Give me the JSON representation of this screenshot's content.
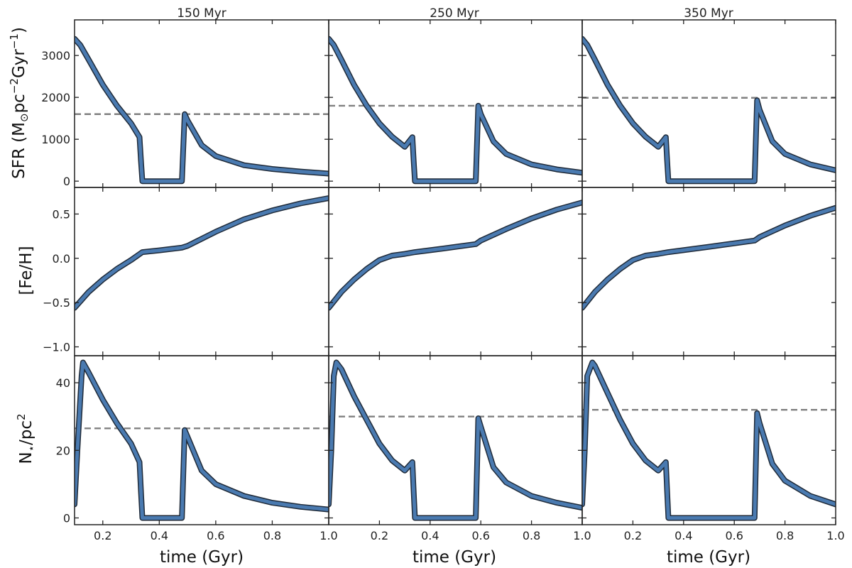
{
  "figure": {
    "column_titles": [
      "150 Myr",
      "250 Myr",
      "350 Myr"
    ],
    "row_ylabels": [
      "SFR (M$_\\odot$pc$^{-2}$Gyr$^{-1}$)",
      "[Fe/H]",
      "N$_\\star$/pc$^2$"
    ],
    "ylabel_sfr": {
      "base": "SFR (M",
      "sub": "⊙",
      "mid1": "pc",
      "sup1": "−2",
      "mid2": "Gyr",
      "sup2": "−1",
      "end": ")"
    },
    "ylabel_feh": "[Fe/H]",
    "ylabel_nstar": {
      "base": "N",
      "sub": "⋆",
      "mid": "/pc",
      "sup": "2"
    },
    "xlabel": "time (Gyr)",
    "colors": {
      "line": "#4a7ab0",
      "outline": "#1f2a38",
      "ref": "#808080"
    }
  },
  "chart_data": [
    {
      "type": "line",
      "row": 0,
      "col": 0,
      "xlim": [
        0.1,
        1.0
      ],
      "ylim": [
        -150,
        3850
      ],
      "yticks": [
        0,
        1000,
        2000,
        3000
      ],
      "yticklabels": [
        "0",
        "1000",
        "2000",
        "3000"
      ],
      "xticks": [
        0.2,
        0.4,
        0.6,
        0.8,
        1.0
      ],
      "reference_y": 1600,
      "series": [
        {
          "x": [
            0.1,
            0.12,
            0.15,
            0.2,
            0.25,
            0.3,
            0.33,
            0.335,
            0.34,
            0.48,
            0.49,
            0.5,
            0.55,
            0.6,
            0.7,
            0.8,
            0.9,
            1.0
          ],
          "y": [
            3400,
            3250,
            2900,
            2300,
            1800,
            1380,
            1050,
            500,
            0,
            0,
            1600,
            1450,
            860,
            600,
            380,
            290,
            230,
            180
          ]
        }
      ]
    },
    {
      "type": "line",
      "row": 0,
      "col": 1,
      "xlim": [
        0.0,
        1.0
      ],
      "ylim": [
        -150,
        3850
      ],
      "yticks": [
        0,
        1000,
        2000,
        3000
      ],
      "xticks": [
        0.2,
        0.4,
        0.6,
        0.8,
        1.0
      ],
      "reference_y": 1800,
      "series": [
        {
          "x": [
            0.0,
            0.02,
            0.05,
            0.1,
            0.15,
            0.2,
            0.25,
            0.3,
            0.33,
            0.335,
            0.34,
            0.58,
            0.59,
            0.6,
            0.65,
            0.7,
            0.8,
            0.9,
            1.0
          ],
          "y": [
            3400,
            3250,
            2900,
            2300,
            1800,
            1380,
            1060,
            820,
            1050,
            500,
            0,
            0,
            1800,
            1600,
            950,
            650,
            400,
            280,
            200
          ]
        }
      ]
    },
    {
      "type": "line",
      "row": 0,
      "col": 2,
      "xlim": [
        0.0,
        1.0
      ],
      "ylim": [
        -150,
        3850
      ],
      "yticks": [
        0,
        1000,
        2000,
        3000
      ],
      "xticks": [
        0.2,
        0.4,
        0.6,
        0.8,
        1.0
      ],
      "reference_y": 1990,
      "series": [
        {
          "x": [
            0.0,
            0.02,
            0.05,
            0.1,
            0.15,
            0.2,
            0.25,
            0.3,
            0.33,
            0.335,
            0.34,
            0.68,
            0.69,
            0.7,
            0.75,
            0.8,
            0.9,
            1.0
          ],
          "y": [
            3400,
            3250,
            2900,
            2300,
            1800,
            1380,
            1060,
            820,
            1050,
            500,
            0,
            0,
            1930,
            1700,
            950,
            650,
            400,
            260
          ]
        }
      ]
    },
    {
      "type": "line",
      "row": 1,
      "col": 0,
      "xlim": [
        0.1,
        1.0
      ],
      "ylim": [
        -1.1,
        0.8
      ],
      "yticks": [
        -1.0,
        -0.5,
        0.0,
        0.5
      ],
      "yticklabels": [
        "−1.0",
        "−0.5",
        "0.0",
        "0.5"
      ],
      "xticks": [
        0.2,
        0.4,
        0.6,
        0.8,
        1.0
      ],
      "series": [
        {
          "x": [
            0.1,
            0.15,
            0.2,
            0.25,
            0.3,
            0.34,
            0.4,
            0.48,
            0.5,
            0.6,
            0.7,
            0.8,
            0.9,
            1.0
          ],
          "y": [
            -0.56,
            -0.38,
            -0.24,
            -0.12,
            -0.02,
            0.07,
            0.09,
            0.12,
            0.14,
            0.3,
            0.44,
            0.54,
            0.62,
            0.68
          ]
        }
      ]
    },
    {
      "type": "line",
      "row": 1,
      "col": 1,
      "xlim": [
        0.0,
        1.0
      ],
      "ylim": [
        -1.1,
        0.8
      ],
      "yticks": [
        -1.0,
        -0.5,
        0.0,
        0.5
      ],
      "xticks": [
        0.2,
        0.4,
        0.6,
        0.8,
        1.0
      ],
      "series": [
        {
          "x": [
            0.0,
            0.05,
            0.1,
            0.15,
            0.2,
            0.25,
            0.3,
            0.34,
            0.45,
            0.58,
            0.6,
            0.7,
            0.8,
            0.9,
            1.0
          ],
          "y": [
            -0.56,
            -0.38,
            -0.24,
            -0.12,
            -0.02,
            0.03,
            0.05,
            0.07,
            0.11,
            0.16,
            0.2,
            0.33,
            0.45,
            0.55,
            0.63
          ]
        }
      ]
    },
    {
      "type": "line",
      "row": 1,
      "col": 2,
      "xlim": [
        0.0,
        1.0
      ],
      "ylim": [
        -1.1,
        0.8
      ],
      "yticks": [
        -1.0,
        -0.5,
        0.0,
        0.5
      ],
      "xticks": [
        0.2,
        0.4,
        0.6,
        0.8,
        1.0
      ],
      "series": [
        {
          "x": [
            0.0,
            0.05,
            0.1,
            0.15,
            0.2,
            0.25,
            0.3,
            0.34,
            0.5,
            0.68,
            0.7,
            0.8,
            0.9,
            1.0
          ],
          "y": [
            -0.56,
            -0.38,
            -0.24,
            -0.12,
            -0.02,
            0.03,
            0.05,
            0.07,
            0.13,
            0.2,
            0.24,
            0.37,
            0.48,
            0.57
          ]
        }
      ]
    },
    {
      "type": "line",
      "row": 2,
      "col": 0,
      "xlim": [
        0.1,
        1.0
      ],
      "ylim": [
        -2,
        48
      ],
      "yticks": [
        0,
        20,
        40
      ],
      "yticklabels": [
        "0",
        "20",
        "40"
      ],
      "xticks": [
        0.2,
        0.4,
        0.6,
        0.8,
        1.0
      ],
      "reference_y": 26.5,
      "series": [
        {
          "x": [
            0.1,
            0.11,
            0.125,
            0.13,
            0.15,
            0.2,
            0.25,
            0.3,
            0.33,
            0.335,
            0.34,
            0.48,
            0.49,
            0.5,
            0.55,
            0.6,
            0.7,
            0.8,
            0.9,
            1.0
          ],
          "y": [
            4,
            20,
            42,
            46,
            43,
            35,
            28,
            22,
            16.5,
            8,
            0,
            0,
            26,
            24,
            14,
            10,
            6.5,
            4.5,
            3.3,
            2.5
          ]
        }
      ]
    },
    {
      "type": "line",
      "row": 2,
      "col": 1,
      "xlim": [
        0.0,
        1.0
      ],
      "ylim": [
        -2,
        48
      ],
      "yticks": [
        0,
        20,
        40
      ],
      "xticks": [
        0.2,
        0.4,
        0.6,
        0.8,
        1.0
      ],
      "reference_y": 30,
      "series": [
        {
          "x": [
            0.0,
            0.01,
            0.02,
            0.03,
            0.05,
            0.1,
            0.15,
            0.2,
            0.25,
            0.3,
            0.33,
            0.335,
            0.34,
            0.58,
            0.59,
            0.6,
            0.65,
            0.7,
            0.8,
            0.9,
            1.0
          ],
          "y": [
            4,
            20,
            42,
            46,
            44,
            36,
            29,
            22,
            17,
            14,
            16.5,
            8,
            0,
            0,
            29.5,
            27,
            15,
            10.5,
            6.5,
            4.5,
            3
          ]
        }
      ]
    },
    {
      "type": "line",
      "row": 2,
      "col": 2,
      "xlim": [
        0.0,
        1.0
      ],
      "ylim": [
        -2,
        48
      ],
      "yticks": [
        0,
        20,
        40
      ],
      "xticks": [
        0.2,
        0.4,
        0.6,
        0.8,
        1.0
      ],
      "reference_y": 32,
      "series": [
        {
          "x": [
            0.0,
            0.01,
            0.02,
            0.04,
            0.05,
            0.1,
            0.15,
            0.2,
            0.25,
            0.3,
            0.33,
            0.335,
            0.34,
            0.68,
            0.69,
            0.7,
            0.75,
            0.8,
            0.9,
            1.0
          ],
          "y": [
            4,
            20,
            42,
            46,
            45,
            37,
            29,
            22,
            17,
            14,
            16.5,
            8,
            0,
            0,
            31,
            28,
            16,
            11,
            6.5,
            4
          ]
        }
      ]
    }
  ]
}
